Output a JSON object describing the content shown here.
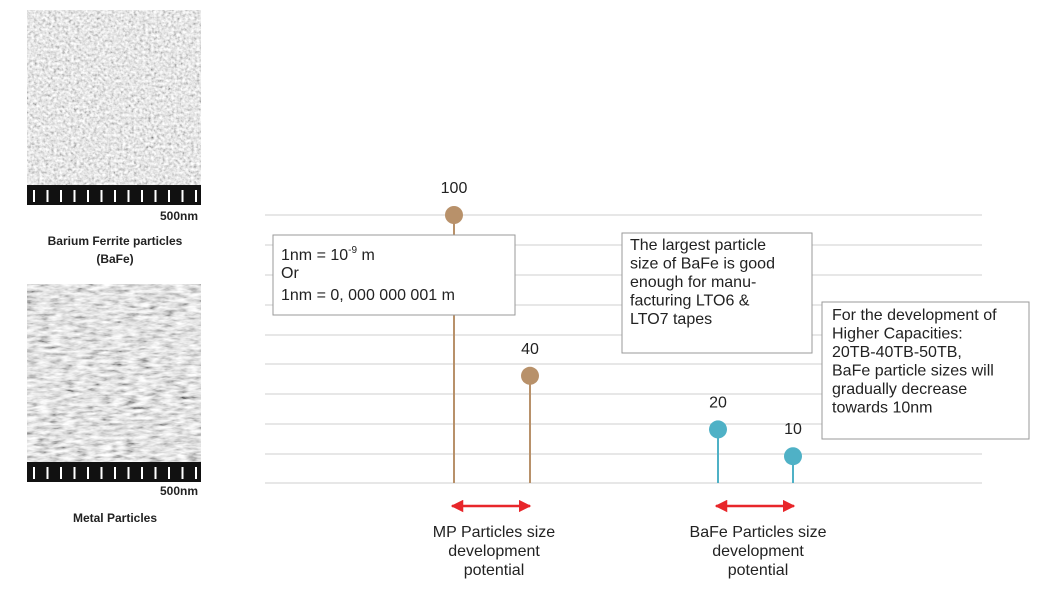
{
  "chart_data": {
    "type": "lollipop",
    "values": [
      100,
      40,
      20,
      10
    ],
    "colors": [
      "#b8916a",
      "#b8916a",
      "#4fb1c6",
      "#4fb1c6"
    ],
    "images": [
      {
        "scale": "500nm",
        "caption": [
          "Barium Ferrite particles",
          "(BaFe)"
        ]
      },
      {
        "scale": "500nm",
        "caption": [
          "Metal Particles"
        ]
      }
    ],
    "annotations": [
      {
        "lines": [
          "1nm = 10",
          "-9",
          " m",
          "Or",
          "1nm = 0, 000 000 001 m"
        ]
      },
      {
        "lines": [
          "The largest particle",
          "size of BaFe is good",
          "enough for manu-",
          "facturing LTO6 &",
          "LTO7 tapes"
        ]
      },
      {
        "lines": [
          "For the development of",
          "Higher Capacities:",
          "20TB-40TB-50TB,",
          "BaFe particle sizes will",
          "gradually decrease",
          "towards 10nm"
        ]
      }
    ],
    "ranges": [
      {
        "lines": [
          "MP Particles size",
          "development",
          "potential"
        ]
      },
      {
        "lines": [
          "BaFe Particles size",
          "development",
          "potential"
        ]
      }
    ]
  }
}
